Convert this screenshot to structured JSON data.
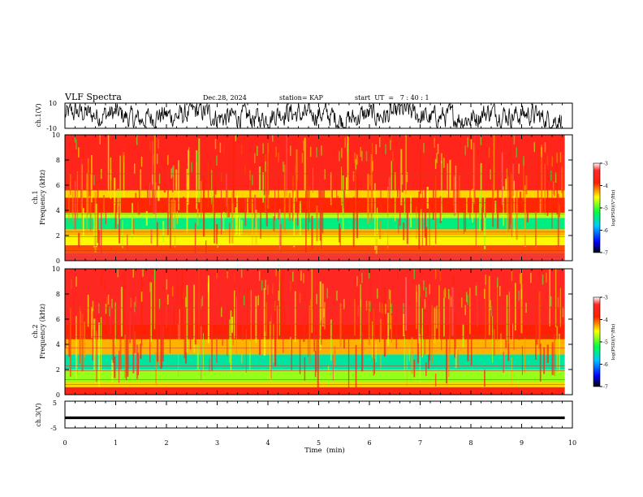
{
  "header": {
    "title": "VLF Spectra",
    "date": "Dec.28, 2024",
    "station": "station= KAP",
    "start_ut": "start  UT  =   7 : 40 : 1"
  },
  "chart_data": [
    {
      "type": "line",
      "panel": "ch1-waveform",
      "ylabel": "ch.1(V)",
      "ylim": [
        -10,
        10
      ],
      "yticks": [
        "10",
        "-10"
      ],
      "xlim": [
        0,
        10
      ],
      "description_values": "noisy waveform, envelope about -8 to +8 V"
    },
    {
      "type": "heatmap",
      "panel": "ch1-spectrogram",
      "ylabel_top": "ch.1",
      "ylabel": "Frequency  (kHz)",
      "ylim": [
        0,
        10
      ],
      "yticks": [
        "0",
        "2",
        "4",
        "6",
        "8",
        "10"
      ],
      "xlim": [
        0,
        9.85
      ],
      "bands": [
        {
          "from": 0.0,
          "to": 0.6,
          "level": -3.3
        },
        {
          "from": 0.6,
          "to": 1.2,
          "level": -4.0
        },
        {
          "from": 1.2,
          "to": 2.0,
          "level": -4.5
        },
        {
          "from": 2.0,
          "to": 2.5,
          "level": -4.3
        },
        {
          "from": 2.5,
          "to": 3.4,
          "level": -5.4
        },
        {
          "from": 3.4,
          "to": 3.8,
          "level": -4.7
        },
        {
          "from": 3.8,
          "to": 5.0,
          "level": -3.9
        },
        {
          "from": 5.0,
          "to": 5.6,
          "level": -4.4
        },
        {
          "from": 5.6,
          "to": 10.0,
          "level": -3.5
        }
      ]
    },
    {
      "type": "heatmap",
      "panel": "ch2-spectrogram",
      "ylabel_top": "ch.2",
      "ylabel": "Frequency  (kHz)",
      "ylim": [
        0,
        10
      ],
      "yticks": [
        "0",
        "2",
        "4",
        "6",
        "8",
        "10"
      ],
      "xlim": [
        0,
        9.85
      ],
      "bands": [
        {
          "from": 0.0,
          "to": 0.6,
          "level": -3.6
        },
        {
          "from": 0.6,
          "to": 1.0,
          "level": -4.4
        },
        {
          "from": 1.0,
          "to": 2.0,
          "level": -4.8
        },
        {
          "from": 2.0,
          "to": 3.2,
          "level": -5.5
        },
        {
          "from": 3.2,
          "to": 4.4,
          "level": -4.3
        },
        {
          "from": 4.4,
          "to": 5.6,
          "level": -3.8
        },
        {
          "from": 5.6,
          "to": 10.0,
          "level": -3.4
        }
      ]
    },
    {
      "type": "line",
      "panel": "ch3-waveform",
      "ylabel": "ch.3(V)",
      "ylim": [
        -5,
        5
      ],
      "yticks": [
        "5",
        "-5"
      ],
      "xlim": [
        0,
        10
      ],
      "description_values": "flat band near -1.2 V, thickness about 1 V"
    }
  ],
  "colorbar": {
    "label": "log(PSD)(V²/Hz)",
    "min": -7,
    "max": -3,
    "ticks": [
      "-3",
      "-4",
      "-5",
      "-6",
      "-7"
    ],
    "colors": [
      "#000000",
      "#0000ff",
      "#00c8ff",
      "#00ff40",
      "#ffff00",
      "#ff2000",
      "#ff2020",
      "#ffffff"
    ]
  },
  "xaxis": {
    "label": "Time  (min)",
    "ticks": [
      "0",
      "1",
      "2",
      "3",
      "4",
      "5",
      "6",
      "7",
      "8",
      "9",
      "10"
    ]
  }
}
